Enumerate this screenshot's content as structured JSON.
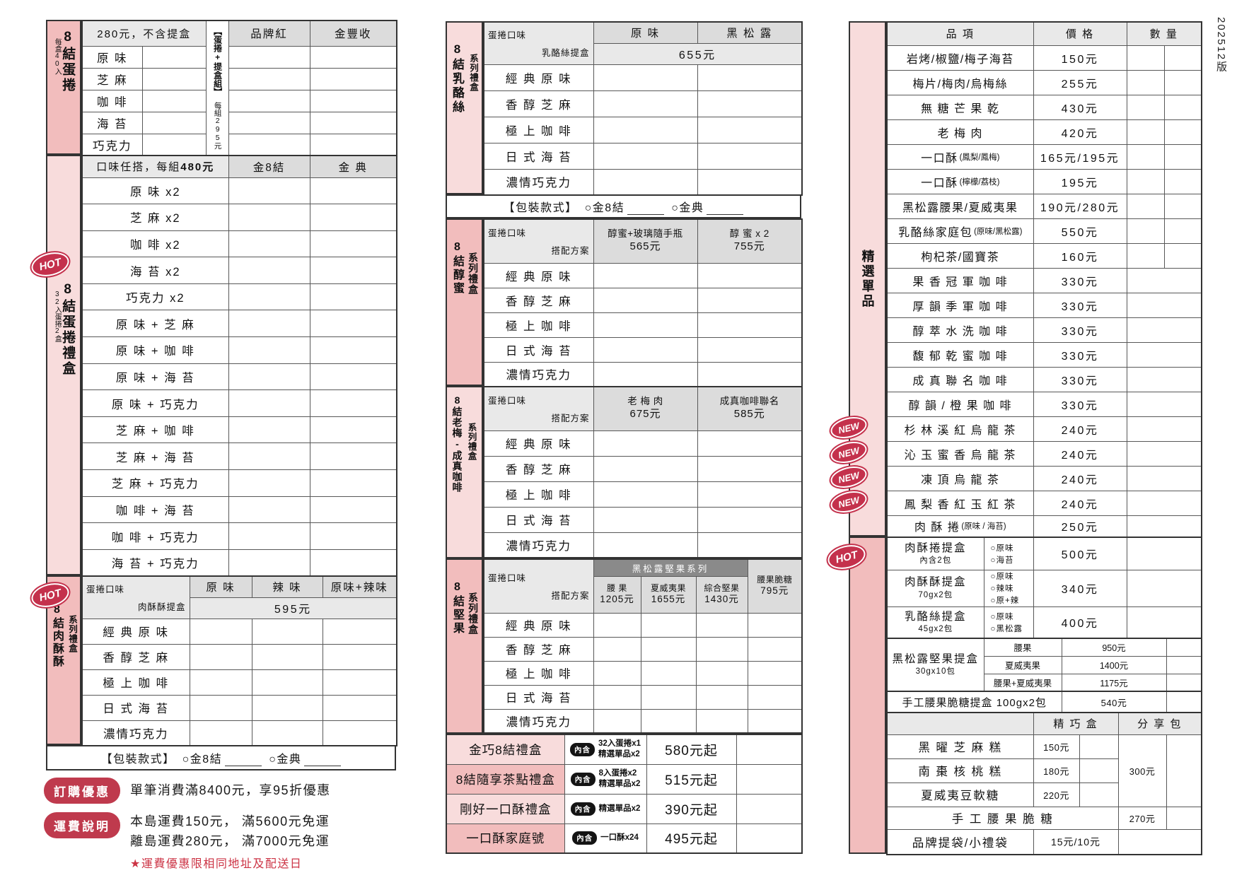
{
  "version_tag": "202512版",
  "badges": {
    "hot": "HOT",
    "new": "NEW",
    "inner": "內含"
  },
  "packaging": {
    "label": "【包裝款式】",
    "opt_gold8": "○金8結",
    "opt_golden": "○金典"
  },
  "flavors5": [
    "經 典 原 味",
    "香 醇 芝 麻",
    "極 上 咖 啡",
    "日 式 海 苔",
    "濃情巧克力"
  ],
  "colors": {
    "pink_strong": "#f2bdbd",
    "pink_light": "#f8dcdc",
    "badge_red": "#c4314c",
    "promo_red": "#bf3a4d",
    "header_gray": "#e9e9e9",
    "column_gray": "#dcdcdc",
    "nut_bar_gray": "#8a8a8a"
  },
  "left": {
    "roll": {
      "side": "8結蛋捲",
      "side_note": "每盒40入",
      "price_header": "280元，不含提盒",
      "combo_label": "【蛋捲+提盒組】",
      "combo_price": "每組295元",
      "col1": "品牌紅",
      "col2": "金豐收",
      "flavors": [
        "原 味",
        "芝 麻",
        "咖 啡",
        "海 苔",
        "巧克力"
      ]
    },
    "roll_gift": {
      "side": "8結蛋捲禮盒",
      "side_note": "32入蛋捲2盒",
      "header_pre": "口味任搭，每組",
      "header_bold": "480元",
      "col1": "金8結",
      "col2": "金 典",
      "rows": [
        "原 味 x2",
        "芝 麻 x2",
        "咖 啡 x2",
        "海 苔 x2",
        "巧克力 x2",
        "原 味 + 芝 麻",
        "原 味 + 咖 啡",
        "原 味 + 海 苔",
        "原 味 + 巧克力",
        "芝 麻 + 咖 啡",
        "芝 麻 + 海 苔",
        "芝 麻 + 巧克力",
        "咖 啡 + 海 苔",
        "咖 啡 + 巧克力",
        "海 苔 + 巧克力"
      ]
    },
    "pork_gift": {
      "side_main": "8結肉酥酥",
      "side_sub": "系列禮盒",
      "diag_top": "肉酥酥提盒",
      "diag_bottom": "蛋捲口味",
      "cols": [
        "原 味",
        "辣 味",
        "原味+辣味"
      ],
      "price": "595元"
    },
    "promo": {
      "order_badge": "訂購優惠",
      "order_text": "單筆消費滿8400元，享95折優惠",
      "ship_badge": "運費說明",
      "ship_line1": "本島運費150元， 滿5600元免運",
      "ship_line2": "離島運費280元， 滿7000元免運",
      "ship_note": "★運費優惠限相同地址及配送日"
    }
  },
  "middle": {
    "cheese": {
      "side_main": "8結乳酪絲",
      "side_sub": "系列禮盒",
      "diag_top": "乳酪絲提盒",
      "diag_bottom": "蛋捲口味",
      "cols": [
        "原 味",
        "黑 松 露"
      ],
      "price": "655元"
    },
    "honey": {
      "side_main": "8結醇蜜",
      "side_sub": "系列禮盒",
      "diag_top": "搭配方案",
      "diag_bottom": "蛋捲口味",
      "cols": [
        {
          "name": "醇蜜+玻璃隨手瓶",
          "price": "565元"
        },
        {
          "name": "醇 蜜 x 2",
          "price": "755元"
        }
      ]
    },
    "plum_coffee": {
      "side_main": "8結老梅-成真咖啡",
      "side_sub": "系列禮盒",
      "diag_top": "搭配方案",
      "diag_bottom": "蛋捲口味",
      "cols": [
        {
          "name": "老 梅 肉",
          "price": "675元"
        },
        {
          "name": "成真咖啡聯名",
          "price": "585元"
        }
      ]
    },
    "nuts": {
      "side_main": "8結堅果",
      "side_sub": "系列禮盒",
      "diag_top": "搭配方案",
      "diag_bottom": "蛋捲口味",
      "group_header": "黑松露堅果系列",
      "cols": [
        {
          "name": "腰 果",
          "price": "1205元"
        },
        {
          "name": "夏威夷果",
          "price": "1655元"
        },
        {
          "name": "綜合堅果",
          "price": "1430元"
        }
      ],
      "extra_col": {
        "name": "腰果脆糖",
        "price": "795元"
      }
    },
    "gift_sets": [
      {
        "name": "金巧8結禮盒",
        "contents": [
          "32入蛋捲x1",
          "精選單品x2"
        ],
        "price": "580元起"
      },
      {
        "name": "8結隨享茶點禮盒",
        "contents": [
          "8入蛋捲x2",
          "精選單品x2"
        ],
        "price": "515元起"
      },
      {
        "name": "剛好一口酥禮盒",
        "contents": [
          "精選單品x2"
        ],
        "price": "390元起"
      },
      {
        "name": "一口酥家庭號",
        "contents": [
          "一口酥x24"
        ],
        "price": "495元起"
      }
    ]
  },
  "right": {
    "side": "精選單品",
    "headers": [
      "品 項",
      "價 格",
      "數 量"
    ],
    "rows": [
      {
        "item": "岩烤/椒鹽/梅子海苔",
        "price": "150元",
        "qty2": true
      },
      {
        "item": "梅片/梅肉/烏梅絲",
        "price": "255元",
        "qty2": true
      },
      {
        "item": "無 糖 芒 果 乾",
        "price": "430元",
        "qty2": true
      },
      {
        "item": "老 梅 肉",
        "price": "420元",
        "qty2": true
      },
      {
        "item": "一口酥",
        "sub": "(鳳梨/鳳梅)",
        "price": "165元/195元",
        "qty2": true
      },
      {
        "item": "一口酥",
        "sub": "(檸檬/荔枝)",
        "price": "195元",
        "qty2": true
      },
      {
        "item": "黑松露腰果/夏威夷果",
        "price": "190元/280元",
        "qty2": true
      },
      {
        "item": "乳酪絲家庭包",
        "sub": "(原味/黑松露)",
        "price": "550元",
        "qty2": true
      },
      {
        "item": "枸杞茶/國寶茶",
        "price": "160元",
        "qty2": true
      },
      {
        "item": "果 香 冠 軍 咖 啡",
        "price": "330元"
      },
      {
        "item": "厚 韻 季 軍 咖 啡",
        "price": "330元"
      },
      {
        "item": "醇 萃 水 洗 咖 啡",
        "price": "330元"
      },
      {
        "item": "馥 郁 乾 蜜 咖 啡",
        "price": "330元"
      },
      {
        "item": "成 真 聯 名 咖 啡",
        "price": "330元"
      },
      {
        "item": "醇 韻 / 橙 果 咖 啡",
        "price": "330元"
      },
      {
        "item": "杉 林 溪 紅 烏 龍 茶",
        "price": "240元",
        "badge": "new"
      },
      {
        "item": "沁 玉 蜜 香 烏 龍 茶",
        "price": "240元",
        "badge": "new"
      },
      {
        "item": "凍 頂 烏 龍 茶",
        "price": "240元",
        "badge": "new"
      },
      {
        "item": "鳳 梨 香 紅 玉 紅 茶",
        "price": "240元",
        "badge": "new"
      },
      {
        "item": "肉 酥 捲",
        "sub": "(原味 / 海苔)",
        "price": "250元"
      }
    ],
    "option_rows": [
      {
        "name": "肉酥捲提盒",
        "note": "內含2包",
        "options": [
          "○原味",
          "○海苔"
        ],
        "price": "500元",
        "badge": "hot"
      },
      {
        "name": "肉酥酥提盒",
        "note": "70gx2包",
        "options": [
          "○原味",
          "○辣味",
          "○原+辣"
        ],
        "price": "340元"
      },
      {
        "name": "乳酪絲提盒",
        "note": "45gx2包",
        "options": [
          "○原味",
          "○黑松露"
        ],
        "price": "400元"
      }
    ],
    "nut_box": {
      "name": "黑松露堅果提盒",
      "note": "30gx10包",
      "variants": [
        {
          "label": "腰果",
          "price": "950元"
        },
        {
          "label": "夏威夷果",
          "price": "1400元"
        },
        {
          "label": "腰果+夏威夷果",
          "price": "1175元"
        }
      ]
    },
    "cashew_box": {
      "name": "手工腰果脆糖提盒 100gx2包",
      "price": "540元"
    },
    "bottom": {
      "col1": "精 巧 盒",
      "col2": "分 享 包",
      "rows": [
        {
          "name": "黑 曜 芝 麻 糕",
          "price": "150元"
        },
        {
          "name": "南 棗 核 桃 糕",
          "price": "180元"
        },
        {
          "name": "夏威夷豆軟糖",
          "price": "220元"
        }
      ],
      "share_price": "300元",
      "cashew": {
        "name": "手 工 腰 果 脆 糖",
        "price": "270元"
      },
      "bags": {
        "name": "品牌提袋/小禮袋",
        "price": "15元/10元"
      }
    }
  }
}
